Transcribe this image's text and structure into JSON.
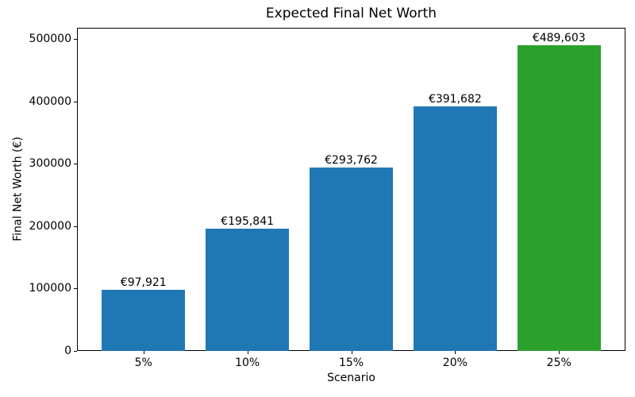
{
  "chart_data": {
    "type": "bar",
    "title": "Expected Final Net Worth",
    "xlabel": "Scenario",
    "ylabel": "Final Net Worth (€)",
    "categories": [
      "5%",
      "10%",
      "15%",
      "20%",
      "25%"
    ],
    "values": [
      97921,
      195841,
      293762,
      391682,
      489603
    ],
    "bar_labels": [
      "€97,921",
      "€195,841",
      "€293,762",
      "€391,682",
      "€489,603"
    ],
    "bar_colors": [
      "#1f77b4",
      "#1f77b4",
      "#1f77b4",
      "#1f77b4",
      "#2ca02c"
    ],
    "yticks": [
      0,
      100000,
      200000,
      300000,
      400000,
      500000
    ],
    "ytick_labels": [
      "0",
      "100000",
      "200000",
      "300000",
      "400000",
      "500000"
    ],
    "xlim": [
      -0.64,
      4.64
    ],
    "ylim": [
      0,
      517800
    ],
    "bar_width": 0.8,
    "grid": false,
    "legend_position": "none",
    "axis_color": "#000000",
    "background_color": "#ffffff"
  }
}
